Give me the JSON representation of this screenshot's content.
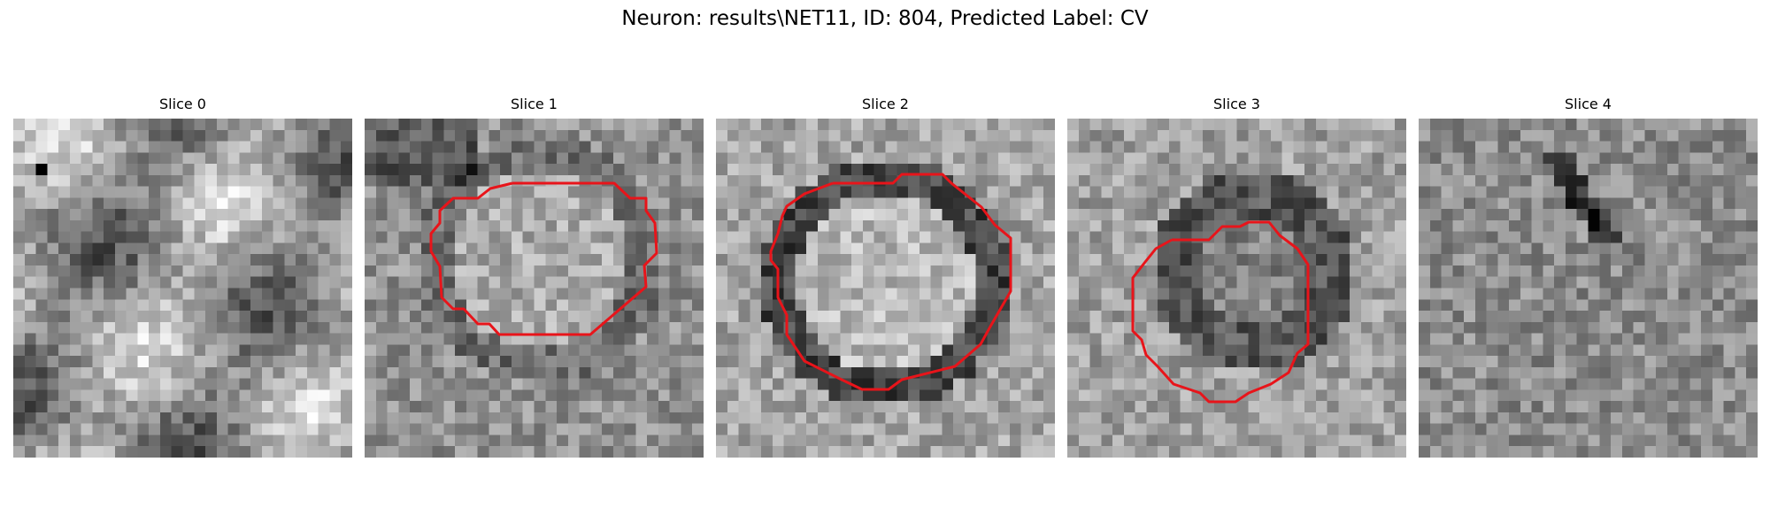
{
  "figure": {
    "title": "Neuron: results\\NET11, ID: 804, Predicted Label: CV",
    "contour_color": "#e8141a",
    "panels": [
      {
        "title": "Slice 0",
        "has_contour": false
      },
      {
        "title": "Slice 1",
        "has_contour": true
      },
      {
        "title": "Slice 2",
        "has_contour": true
      },
      {
        "title": "Slice 3",
        "has_contour": true
      },
      {
        "title": "Slice 4",
        "has_contour": false
      }
    ]
  }
}
